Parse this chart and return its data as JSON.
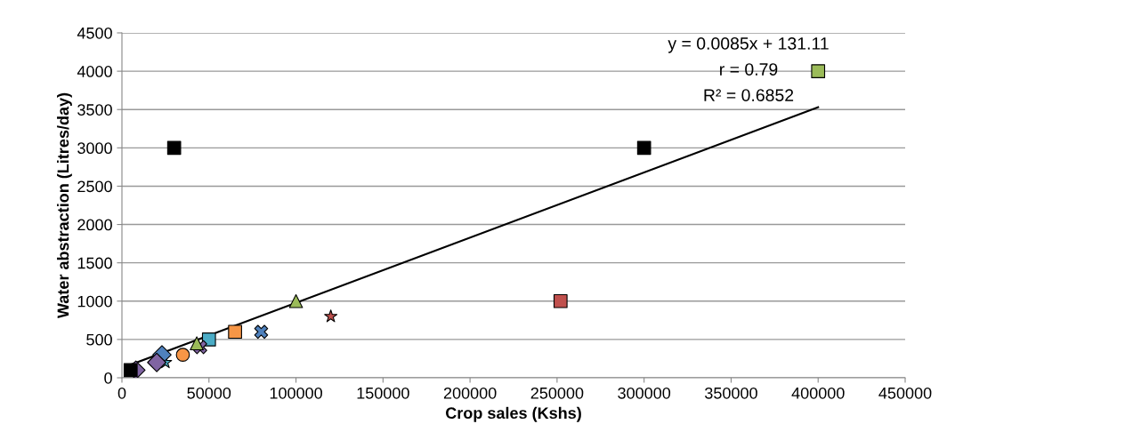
{
  "chart_data": {
    "type": "scatter",
    "xlabel": "Crop sales (Kshs)",
    "ylabel": "Water abstraction (Litres/day)",
    "xlim": [
      0,
      450000
    ],
    "xticks": [
      0,
      50000,
      100000,
      150000,
      200000,
      250000,
      300000,
      350000,
      400000,
      450000
    ],
    "ylim": [
      0,
      4500
    ],
    "yticks": [
      0,
      500,
      1000,
      1500,
      2000,
      2500,
      3000,
      3500,
      4000,
      4500
    ],
    "grid": "y",
    "legend": false,
    "series": [
      {
        "marker": "square",
        "color": "#000000",
        "x": [
          5000,
          30000,
          300000
        ],
        "values": [
          100,
          3000,
          3000
        ]
      },
      {
        "marker": "diamond",
        "color": "#8064a2",
        "x": [
          8000,
          20000
        ],
        "values": [
          100,
          200
        ]
      },
      {
        "marker": "diamond",
        "color": "#4f81bd",
        "x": [
          23000
        ],
        "values": [
          300
        ]
      },
      {
        "marker": "star",
        "color": "#4bacc6",
        "x": [
          25000
        ],
        "values": [
          200
        ]
      },
      {
        "marker": "circle",
        "color": "#f79646",
        "x": [
          35000
        ],
        "values": [
          300
        ]
      },
      {
        "marker": "triangle",
        "color": "#9bbb59",
        "x": [
          43000,
          100000
        ],
        "values": [
          450,
          1000
        ]
      },
      {
        "marker": "cross",
        "color": "#8064a2",
        "x": [
          45000
        ],
        "values": [
          400
        ]
      },
      {
        "marker": "square",
        "color": "#4bacc6",
        "x": [
          50000
        ],
        "values": [
          500
        ]
      },
      {
        "marker": "square",
        "color": "#f79646",
        "x": [
          65000
        ],
        "values": [
          600
        ]
      },
      {
        "marker": "cross",
        "color": "#4f81bd",
        "x": [
          80000
        ],
        "values": [
          600
        ]
      },
      {
        "marker": "star",
        "color": "#c0504d",
        "x": [
          120000
        ],
        "values": [
          800
        ]
      },
      {
        "marker": "square",
        "color": "#c0504d",
        "x": [
          252000
        ],
        "values": [
          1000
        ]
      },
      {
        "marker": "square",
        "color": "#9bbb59",
        "x": [
          400000
        ],
        "values": [
          4000
        ]
      },
      {
        "type": "line",
        "color": "#000000",
        "x": [
          5000,
          400000
        ],
        "values": [
          170,
          3530
        ]
      }
    ],
    "annotations": [
      "y = 0.0085x + 131.11",
      "r = 0.79",
      "R² = 0.6852"
    ]
  }
}
